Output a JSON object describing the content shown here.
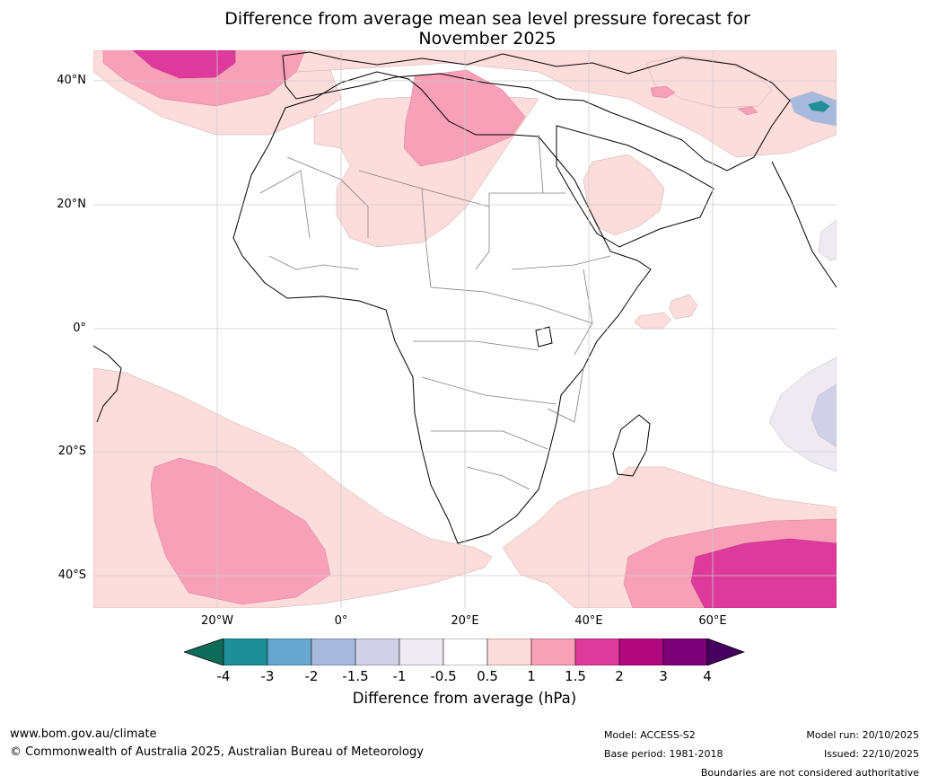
{
  "title": {
    "line1": "Difference from average mean sea level pressure forecast for",
    "line2": "November 2025"
  },
  "axes": {
    "lat_labels": [
      "40°N",
      "20°N",
      "0°",
      "20°S",
      "40°S"
    ],
    "lon_labels": [
      "20°W",
      "0°",
      "20°E",
      "40°E",
      "60°E"
    ]
  },
  "legend": {
    "ticks": [
      "-4",
      "-3",
      "-2",
      "-1.5",
      "-1",
      "-0.5",
      "0.5",
      "1",
      "1.5",
      "2",
      "3",
      "4"
    ],
    "colors": [
      "#0f6b5a",
      "#1e8f96",
      "#67a8d0",
      "#a7b9dc",
      "#d0d1e6",
      "#efe9f2",
      "#ffffff",
      "#fddcdc",
      "#f8a0b8",
      "#de3a9b",
      "#b0077d",
      "#7a0177",
      "#46005f"
    ],
    "label": "Difference from average (hPa)"
  },
  "footer": {
    "website": "www.bom.gov.au/climate",
    "copyright": "© Commonwealth of Australia 2025, Australian Bureau of Meteorology",
    "model": "Model: ACCESS-S2",
    "base_period": "Base period: 1981-2018",
    "model_run": "Model run: 20/10/2025",
    "issued": "Issued: 22/10/2025",
    "disclaimer": "Boundaries are not considered authoritative"
  },
  "colors": {
    "land_edge": "#000000",
    "border": "#808080",
    "grid": "#cccccc"
  }
}
